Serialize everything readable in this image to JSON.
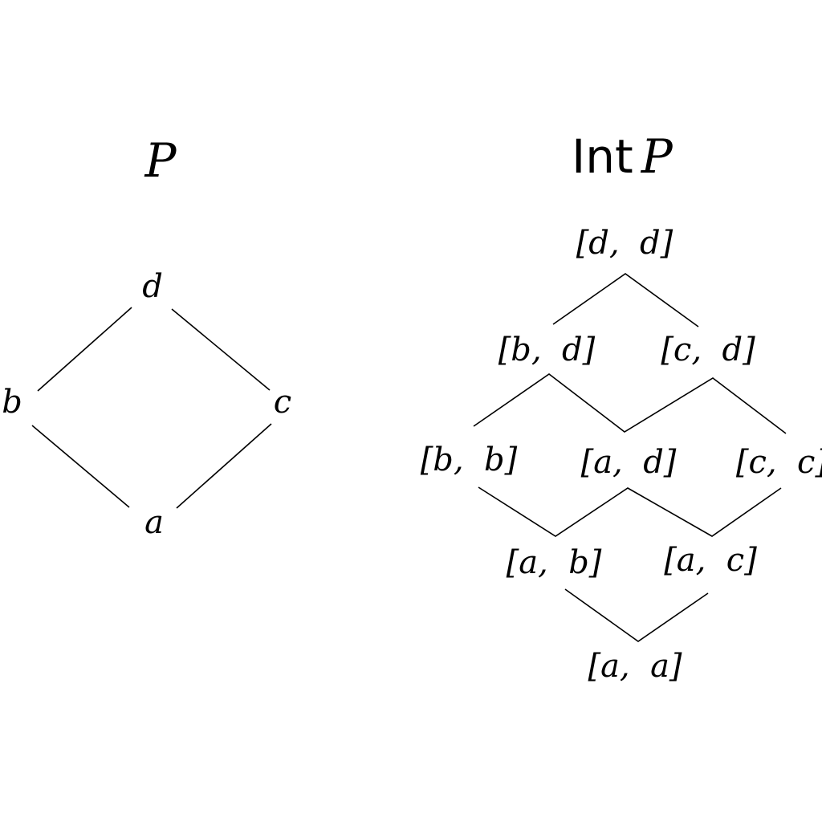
{
  "left_diagram": {
    "title": "P",
    "nodes": {
      "d": "d",
      "b": "b",
      "c": "c",
      "a": "a"
    }
  },
  "right_diagram": {
    "title_operator": "Int",
    "title_symbol": "P",
    "nodes": {
      "dd": "[d,  d]",
      "bd": "[b,  d]",
      "cd": "[c,  d]",
      "bb": "[b,  b]",
      "ad": "[a,  d]",
      "cc": "[c,  c]",
      "ab": "[a,  b]",
      "ac": "[a,  c]",
      "aa": "[a,  a]"
    }
  }
}
